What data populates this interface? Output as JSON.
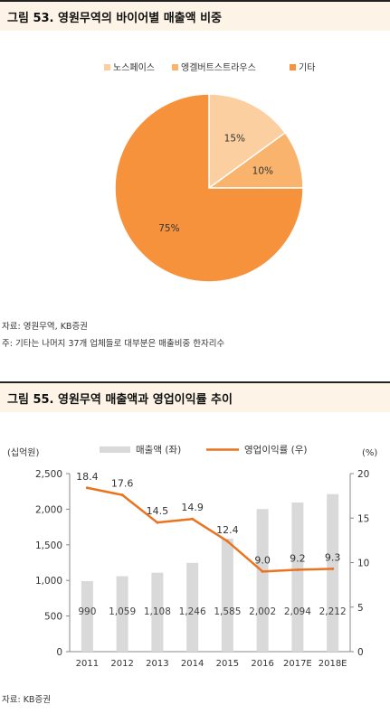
{
  "colors": {
    "slice_1": "#fbcfa0",
    "slice_2": "#f9b36c",
    "slice_3": "#f7923c",
    "bar": "#d9d9d9",
    "line": "#e9731f",
    "header_bg": "#fdf3e7"
  },
  "figure1": {
    "title": "그림 53. 영원무역의 바이어별 매출액 비중",
    "source": "자료: 영원무역, KB증권",
    "footnote": "주: 기타는 나머지 37개 업체들로 대부분은 매출비중 한자리수",
    "chart_data": {
      "type": "pie",
      "slices": [
        {
          "label": "노스페이스",
          "value": 15,
          "value_label": "15%"
        },
        {
          "label": "엥겔버트스트라우스",
          "value": 10,
          "value_label": "10%"
        },
        {
          "label": "기타",
          "value": 75,
          "value_label": "75%"
        }
      ],
      "legend_position": "top"
    }
  },
  "figure2": {
    "title": "그림 55. 영원무역 매출액과 영업이익률 추이",
    "source": "자료: KB증권",
    "chart_data": {
      "type": "bar",
      "categories": [
        "2011",
        "2012",
        "2013",
        "2014",
        "2015",
        "2016",
        "2017E",
        "2018E"
      ],
      "series": [
        {
          "name": "매출액 (좌)",
          "type": "bar",
          "axis": "left",
          "values": [
            990,
            1059,
            1108,
            1246,
            1585,
            2002,
            2094,
            2212
          ],
          "labels": [
            "990",
            "1,059",
            "1,108",
            "1,246",
            "1,585",
            "2,002",
            "2,094",
            "2,212"
          ]
        },
        {
          "name": "영업이익률 (우)",
          "type": "line",
          "axis": "right",
          "values": [
            18.4,
            17.6,
            14.5,
            14.9,
            12.4,
            9.0,
            9.2,
            9.3
          ],
          "labels": [
            "18.4",
            "17.6",
            "14.5",
            "14.9",
            "12.4",
            "9.0",
            "9.2",
            "9.3"
          ]
        }
      ],
      "y_left": {
        "label": "(십억원)",
        "ylim": [
          0,
          2500
        ],
        "ticks": [
          "0",
          "500",
          "1,000",
          "1,500",
          "2,000",
          "2,500"
        ]
      },
      "y_right": {
        "label": "(%)",
        "ylim": [
          0,
          20
        ],
        "ticks": [
          "0",
          "5",
          "10",
          "15",
          "20"
        ]
      },
      "grid": false,
      "legend_position": "top"
    }
  }
}
